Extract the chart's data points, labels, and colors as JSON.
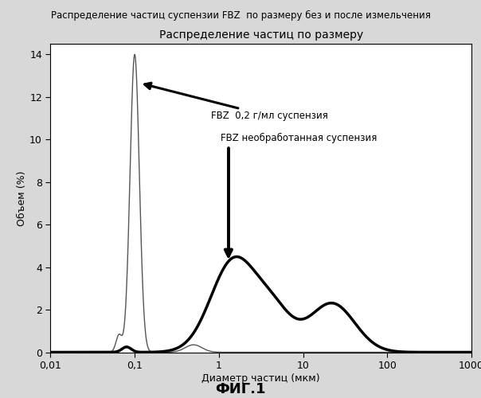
{
  "title_above": "Распределение частиц суспензии FBZ  по размеру без и после измельчения",
  "inner_title": "Распределение частиц по размеру",
  "ylabel": "Объем (%)",
  "xlabel": "Диаметр частиц (мкм)",
  "fig_label": "ФИГ.1",
  "ylim": [
    0,
    14.5
  ],
  "yticks": [
    0,
    2,
    4,
    6,
    8,
    10,
    12,
    14
  ],
  "xtick_labels": [
    "0,01",
    "0,1",
    "1",
    "10",
    "100",
    "1000"
  ],
  "xtick_vals": [
    0.01,
    0.1,
    1,
    10,
    100,
    1000
  ],
  "annotation1_text": "FBZ  0,2 г/мл суспензия",
  "annotation2_text": "FBZ необработанная суспензия",
  "fig_bg_color": "#d8d8d8",
  "plot_bg_color": "#ffffff",
  "thin_color": "#555555",
  "thick_color": "#000000"
}
